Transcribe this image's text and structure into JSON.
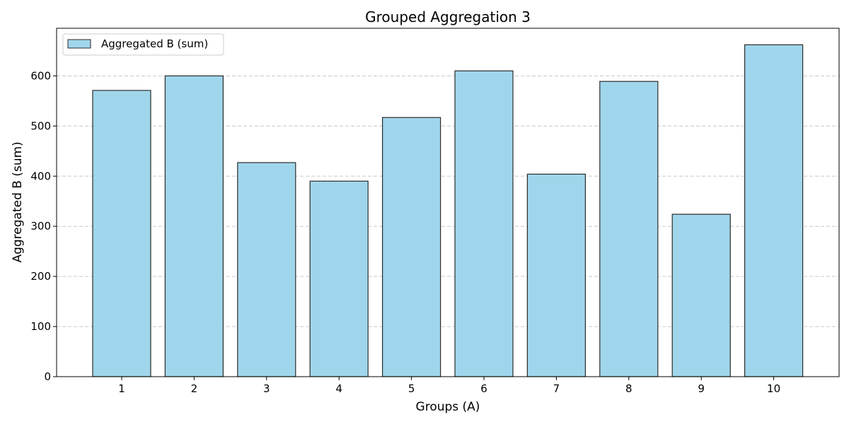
{
  "chart_data": {
    "type": "bar",
    "title": "Grouped Aggregation 3",
    "xlabel": "Groups (A)",
    "ylabel": "Aggregated B (sum)",
    "categories": [
      "1",
      "2",
      "3",
      "4",
      "5",
      "6",
      "7",
      "8",
      "9",
      "10"
    ],
    "series": [
      {
        "name": "Aggregated B (sum)",
        "values": [
          571,
          600,
          427,
          390,
          517,
          610,
          404,
          589,
          324,
          662
        ]
      }
    ],
    "ylim": [
      0,
      695
    ],
    "yticks": [
      0,
      100,
      200,
      300,
      400,
      500,
      600
    ],
    "grid": "y-dashed",
    "legend": "top-left",
    "colors": {
      "bar_fill": "#a0d6ec",
      "bar_edge": "#2b2b2b",
      "grid": "#c8c8c8"
    }
  }
}
